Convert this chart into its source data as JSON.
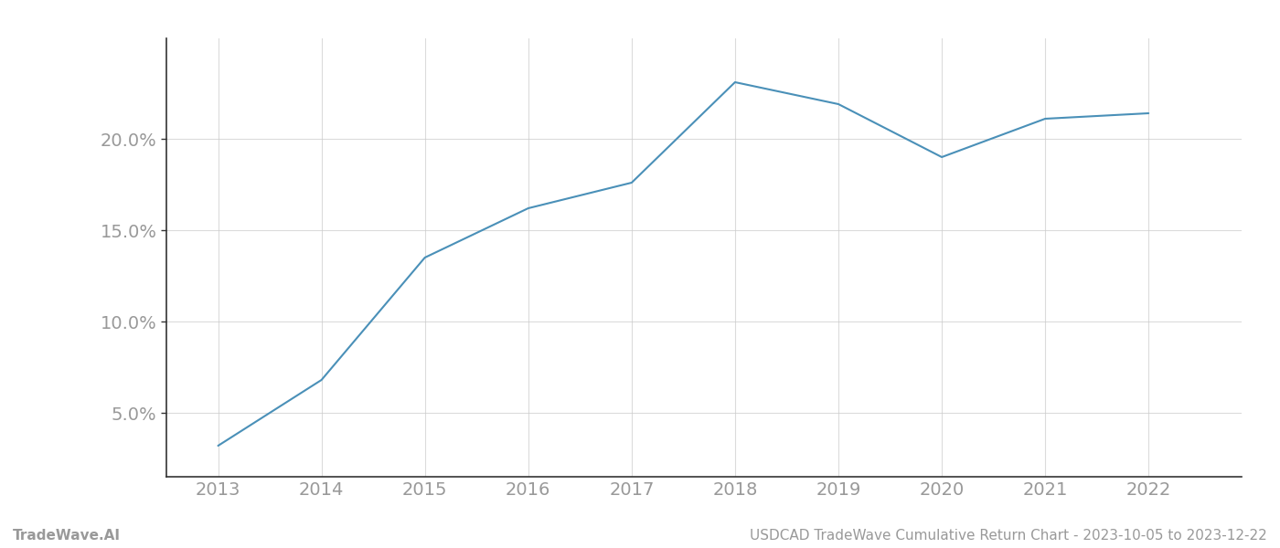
{
  "x_values": [
    2013,
    2014,
    2015,
    2016,
    2017,
    2018,
    2019,
    2020,
    2021,
    2022
  ],
  "y_values": [
    3.2,
    6.8,
    13.5,
    16.2,
    17.6,
    23.1,
    21.9,
    19.0,
    21.1,
    21.4
  ],
  "line_color": "#4a90b8",
  "line_width": 1.5,
  "background_color": "#ffffff",
  "grid_color": "#cccccc",
  "xlim": [
    2012.5,
    2022.9
  ],
  "ylim": [
    1.5,
    25.5
  ],
  "yticks": [
    5.0,
    10.0,
    15.0,
    20.0
  ],
  "xticks": [
    2013,
    2014,
    2015,
    2016,
    2017,
    2018,
    2019,
    2020,
    2021,
    2022
  ],
  "footer_left": "TradeWave.AI",
  "footer_right": "USDCAD TradeWave Cumulative Return Chart - 2023-10-05 to 2023-12-22",
  "tick_label_color": "#999999",
  "footer_color": "#999999",
  "left_spine_color": "#333333",
  "bottom_spine_color": "#333333",
  "grid_alpha": 0.7,
  "tick_label_fontsize": 14,
  "footer_fontsize": 11
}
